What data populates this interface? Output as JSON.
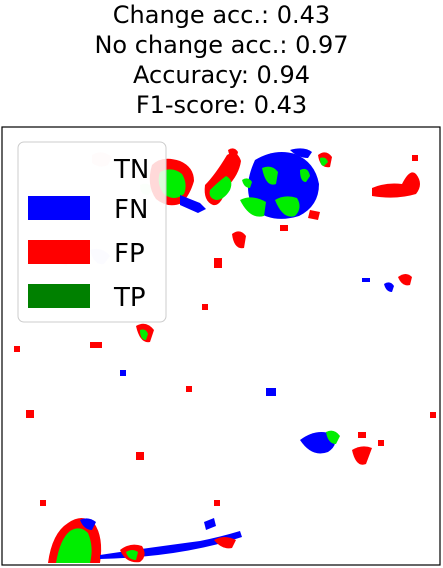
{
  "metrics": {
    "change_acc_line": "Change acc.: 0.43",
    "no_change_acc_line": "No change acc.: 0.97",
    "accuracy_line": "Accuracy: 0.94",
    "f1_line": "F1-score: 0.43"
  },
  "legend": {
    "items": [
      {
        "label": "TN",
        "color": "#ffffff"
      },
      {
        "label": "FN",
        "color": "#0000ff"
      },
      {
        "label": "FP",
        "color": "#ff0000"
      },
      {
        "label": "TP",
        "color": "#008000"
      }
    ]
  },
  "colors": {
    "fn": "#0000ff",
    "fp": "#ff0000",
    "tp": "#00ee00",
    "tp_legend": "#008000"
  }
}
